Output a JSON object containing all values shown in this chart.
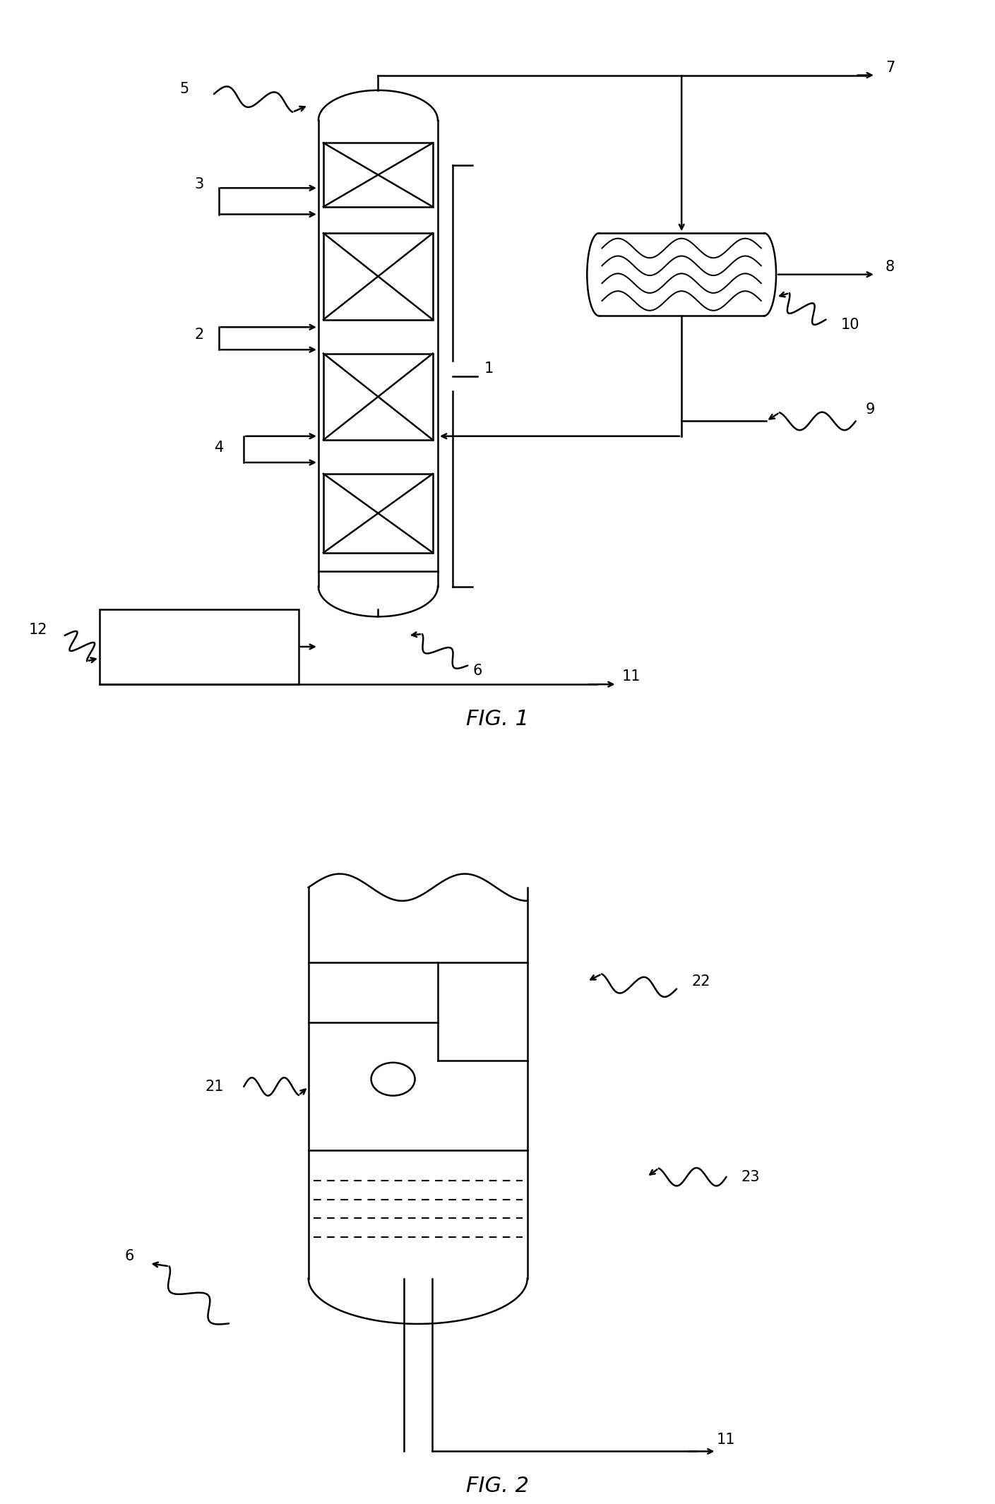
{
  "fig_width": 14.09,
  "fig_height": 21.3,
  "dpi": 100,
  "bg_color": "#ffffff",
  "line_color": "#000000",
  "line_width": 1.8,
  "fig1_title": "FIG. 1",
  "fig2_title": "FIG. 2"
}
